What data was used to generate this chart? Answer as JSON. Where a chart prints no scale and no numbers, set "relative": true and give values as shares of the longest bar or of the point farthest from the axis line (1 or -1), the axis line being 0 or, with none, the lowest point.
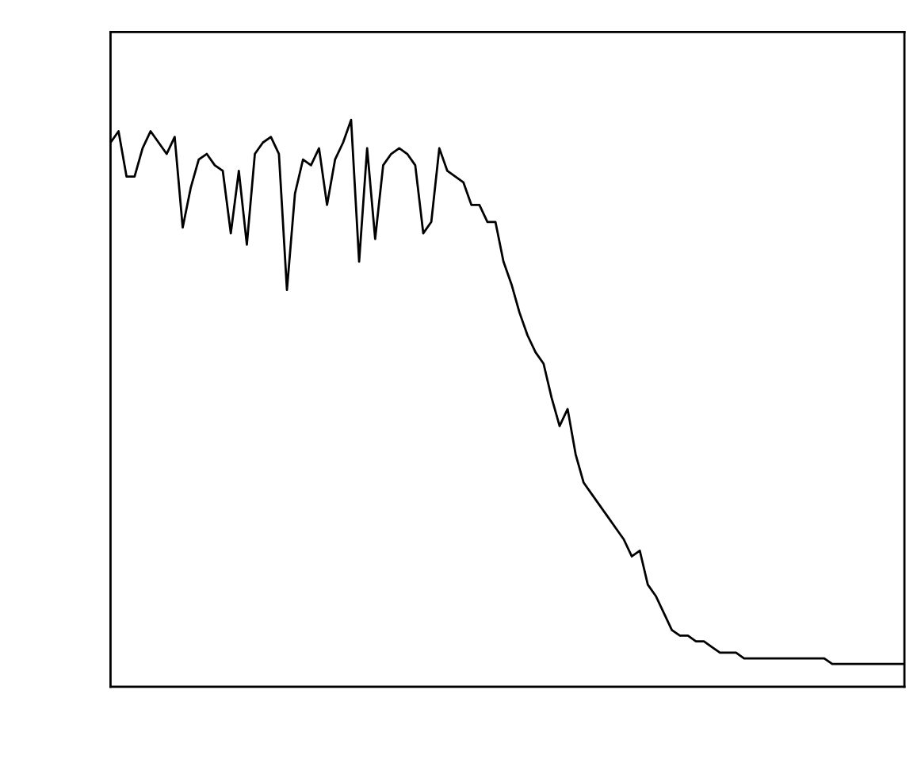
{
  "chart_data": {
    "type": "line",
    "relative": true,
    "categories": [
      null,
      null,
      null,
      null,
      null,
      null,
      null,
      null,
      null,
      null,
      null,
      null,
      null,
      null,
      null,
      null,
      null,
      null,
      null,
      null,
      null,
      null,
      null,
      null,
      null,
      null,
      null,
      null,
      null,
      null,
      null,
      null,
      null,
      null,
      null,
      null,
      null,
      null,
      null,
      null,
      null,
      null,
      null,
      null,
      null,
      null,
      null,
      null,
      null,
      null,
      null,
      null,
      null,
      null,
      null,
      null,
      null,
      null,
      null,
      null,
      null,
      null,
      null,
      null,
      null,
      null,
      null,
      null,
      null,
      null,
      null,
      null,
      null,
      null,
      null,
      null,
      null,
      null,
      null,
      null,
      null,
      null,
      null,
      null,
      null,
      null,
      null,
      null,
      null,
      null,
      null,
      null,
      null,
      null,
      null,
      null,
      null,
      null,
      null,
      null
    ],
    "series": [
      {
        "color": "#000000",
        "values": [
          0.96,
          0.98,
          0.9,
          0.9,
          0.95,
          0.98,
          0.96,
          0.94,
          0.97,
          0.81,
          0.88,
          0.93,
          0.94,
          0.92,
          0.91,
          0.8,
          0.91,
          0.78,
          0.94,
          0.96,
          0.97,
          0.94,
          0.7,
          0.87,
          0.93,
          0.92,
          0.95,
          0.85,
          0.93,
          0.96,
          1.0,
          0.75,
          0.95,
          0.79,
          0.92,
          0.94,
          0.95,
          0.94,
          0.92,
          0.8,
          0.82,
          0.95,
          0.91,
          0.9,
          0.89,
          0.85,
          0.85,
          0.82,
          0.82,
          0.75,
          0.71,
          0.66,
          0.62,
          0.59,
          0.57,
          0.51,
          0.46,
          0.49,
          0.41,
          0.36,
          0.34,
          0.32,
          0.3,
          0.28,
          0.26,
          0.23,
          0.24,
          0.18,
          0.16,
          0.13,
          0.1,
          0.09,
          0.09,
          0.08,
          0.08,
          0.07,
          0.06,
          0.06,
          0.06,
          0.05,
          0.05,
          0.05,
          0.05,
          0.05,
          0.05,
          0.05,
          0.05,
          0.05,
          0.05,
          0.05,
          0.04,
          0.04,
          0.04,
          0.04,
          0.04,
          0.04,
          0.04,
          0.04,
          0.04,
          0.04
        ]
      }
    ]
  }
}
